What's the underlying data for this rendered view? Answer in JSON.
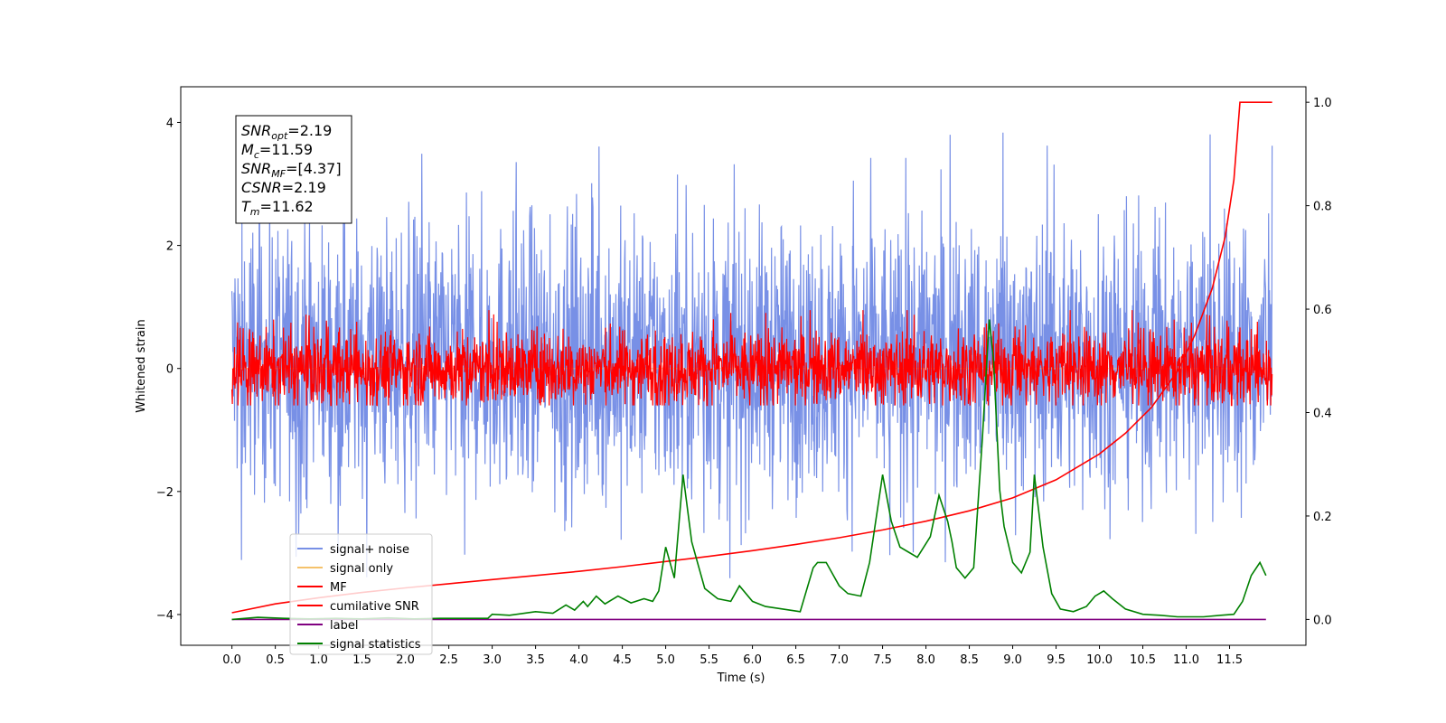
{
  "chart_data": {
    "type": "line",
    "xlabel": "Time (s)",
    "ylabel": "Whitened strain",
    "xlim": [
      -0.59,
      12.38
    ],
    "ylim": [
      -4.5,
      4.58
    ],
    "y2lim": [
      -0.05,
      1.03
    ],
    "x_ticks": [
      "0.0",
      "0.5",
      "1.0",
      "1.5",
      "2.0",
      "2.5",
      "3.0",
      "3.5",
      "4.0",
      "4.5",
      "5.0",
      "5.5",
      "6.0",
      "6.5",
      "7.0",
      "7.5",
      "8.0",
      "8.5",
      "9.0",
      "9.5",
      "10.0",
      "10.5",
      "11.0",
      "11.5"
    ],
    "y_ticks": [
      "4",
      "2",
      "0",
      "−2",
      "−4"
    ],
    "y2_ticks": [
      "1.0",
      "0.8",
      "0.6",
      "0.4",
      "0.2",
      "0.0"
    ],
    "grid": false,
    "legend_position": "lower-left",
    "annotation": [
      {
        "base": "SNR",
        "sub": "opt",
        "value": "=2.19"
      },
      {
        "base": "M",
        "sub": "c",
        "value": "=11.59"
      },
      {
        "base": "SNR",
        "sub": "MF",
        "value": "=[4.37]"
      },
      {
        "base": "CSNR",
        "sub": "",
        "value": "=2.19"
      },
      {
        "base": "T",
        "sub": "m",
        "value": "=11.62"
      }
    ],
    "series": [
      {
        "name": "signal+ noise",
        "color": "#7890e6",
        "axis": "left",
        "kind": "noise",
        "x_range": [
          0.0,
          11.99
        ],
        "typical_band": [
          -1.3,
          1.6
        ],
        "extreme_range": [
          -4.0,
          4.15
        ]
      },
      {
        "name": "signal only",
        "color": "#f5c26b",
        "axis": "left",
        "kind": "flat",
        "x_range": [
          0.0,
          11.99
        ],
        "value": 0.0
      },
      {
        "name": "MF",
        "color": "#ff0000",
        "axis": "left",
        "kind": "noise",
        "x_range": [
          0.0,
          11.99
        ],
        "typical_band": [
          -0.4,
          0.4
        ],
        "extreme_range": [
          -0.6,
          0.95
        ]
      },
      {
        "name": "cumilative SNR",
        "color": "#ff0000",
        "axis": "right",
        "x": [
          0.0,
          0.5,
          1.0,
          1.5,
          2.0,
          2.5,
          3.0,
          3.5,
          4.0,
          4.5,
          5.0,
          5.5,
          6.0,
          6.5,
          7.0,
          7.5,
          8.0,
          8.5,
          9.0,
          9.5,
          10.0,
          10.3,
          10.6,
          10.9,
          11.1,
          11.3,
          11.45,
          11.55,
          11.62,
          11.99
        ],
        "y": [
          0.013,
          0.03,
          0.042,
          0.052,
          0.061,
          0.069,
          0.077,
          0.085,
          0.093,
          0.102,
          0.112,
          0.122,
          0.133,
          0.145,
          0.158,
          0.173,
          0.19,
          0.21,
          0.235,
          0.27,
          0.32,
          0.36,
          0.41,
          0.48,
          0.55,
          0.64,
          0.74,
          0.85,
          1.0,
          1.0
        ]
      },
      {
        "name": "label",
        "color": "#800080",
        "axis": "right",
        "x": [
          0.0,
          11.92
        ],
        "y": [
          0.0,
          0.0
        ]
      },
      {
        "name": "signal statistics",
        "color": "#008000",
        "axis": "right",
        "x": [
          0.0,
          0.3,
          0.6,
          0.9,
          1.2,
          1.5,
          1.8,
          2.1,
          2.4,
          2.7,
          2.95,
          3.0,
          3.2,
          3.5,
          3.7,
          3.85,
          3.95,
          4.05,
          4.1,
          4.2,
          4.3,
          4.45,
          4.6,
          4.75,
          4.85,
          4.92,
          5.0,
          5.1,
          5.2,
          5.3,
          5.45,
          5.6,
          5.75,
          5.85,
          6.0,
          6.15,
          6.35,
          6.55,
          6.7,
          6.75,
          6.85,
          7.0,
          7.1,
          7.25,
          7.35,
          7.5,
          7.6,
          7.7,
          7.8,
          7.9,
          8.05,
          8.15,
          8.25,
          8.3,
          8.35,
          8.45,
          8.55,
          8.65,
          8.73,
          8.78,
          8.85,
          8.9,
          9.0,
          9.1,
          9.2,
          9.25,
          9.35,
          9.45,
          9.55,
          9.7,
          9.85,
          9.95,
          10.05,
          10.15,
          10.3,
          10.5,
          10.7,
          10.9,
          11.2,
          11.4,
          11.55,
          11.65,
          11.75,
          11.85,
          11.92
        ],
        "y": [
          0.0,
          0.004,
          0.002,
          0.001,
          0.002,
          0.001,
          0.003,
          0.001,
          0.002,
          0.002,
          0.002,
          0.01,
          0.008,
          0.015,
          0.012,
          0.028,
          0.018,
          0.035,
          0.025,
          0.045,
          0.03,
          0.045,
          0.032,
          0.04,
          0.035,
          0.055,
          0.14,
          0.08,
          0.28,
          0.15,
          0.06,
          0.04,
          0.035,
          0.065,
          0.035,
          0.025,
          0.02,
          0.015,
          0.1,
          0.11,
          0.11,
          0.065,
          0.05,
          0.045,
          0.11,
          0.28,
          0.19,
          0.14,
          0.13,
          0.12,
          0.16,
          0.24,
          0.19,
          0.15,
          0.1,
          0.08,
          0.1,
          0.35,
          0.58,
          0.5,
          0.25,
          0.18,
          0.11,
          0.09,
          0.13,
          0.28,
          0.14,
          0.05,
          0.02,
          0.015,
          0.025,
          0.045,
          0.055,
          0.04,
          0.02,
          0.01,
          0.008,
          0.005,
          0.005,
          0.008,
          0.01,
          0.035,
          0.085,
          0.11,
          0.085
        ]
      }
    ]
  }
}
